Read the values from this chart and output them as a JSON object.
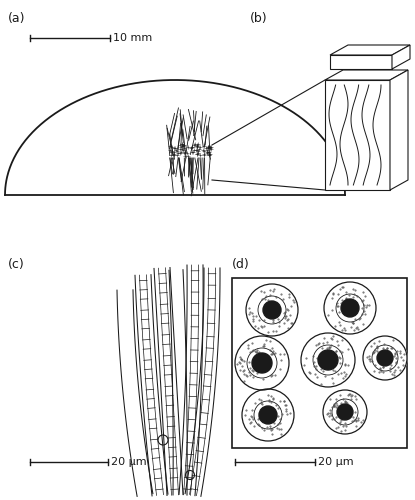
{
  "bg_color": "#ffffff",
  "line_color": "#1a1a1a",
  "label_a": "(a)",
  "label_b": "(b)",
  "label_c": "(c)",
  "label_d": "(d)",
  "scale_a": "10 mm",
  "scale_cd": "20 μm"
}
